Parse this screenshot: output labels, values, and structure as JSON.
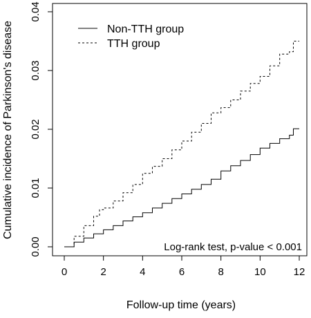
{
  "chart_data": {
    "type": "line",
    "title": "",
    "xlabel": "Follow-up time (years)",
    "ylabel": "Cumulative incidence of Parkinson's disease",
    "xlim": [
      0,
      12
    ],
    "ylim": [
      0,
      0.04
    ],
    "xticks": [
      0,
      2,
      4,
      6,
      8,
      10,
      12
    ],
    "xtick_labels": [
      "0",
      "2",
      "4",
      "6",
      "8",
      "10",
      "12"
    ],
    "yticks": [
      0,
      0.01,
      0.02,
      0.03,
      0.04
    ],
    "ytick_labels": [
      "0.00",
      "0.01",
      "0.02",
      "0.03",
      "0.04"
    ],
    "grid": false,
    "legend_position": "top-left",
    "annotation": "Log-rank test, p-value < 0.001",
    "series": [
      {
        "name": "Non-TTH group",
        "line_style": "solid",
        "x": [
          0,
          0.5,
          1,
          1.5,
          2,
          2.5,
          3,
          3.5,
          4,
          4.5,
          5,
          5.5,
          6,
          6.5,
          7,
          7.5,
          8,
          8.5,
          9,
          9.5,
          10,
          10.5,
          11,
          11.5,
          11.7,
          12
        ],
        "y": [
          0,
          0.0008,
          0.0015,
          0.0022,
          0.0029,
          0.0036,
          0.0044,
          0.0051,
          0.0058,
          0.0066,
          0.0074,
          0.0082,
          0.009,
          0.0098,
          0.0106,
          0.0115,
          0.0129,
          0.0138,
          0.0147,
          0.0157,
          0.0168,
          0.0176,
          0.0184,
          0.019,
          0.0201,
          0.0201
        ]
      },
      {
        "name": "TTH group",
        "line_style": "dashed",
        "x": [
          0,
          0.5,
          1,
          1.5,
          1.8,
          2,
          2.5,
          3,
          3.5,
          4,
          4.5,
          5,
          5.5,
          6,
          6.5,
          7,
          7.5,
          8,
          8.5,
          9,
          9.5,
          10,
          10.5,
          11,
          11.5,
          11.7,
          12
        ],
        "y": [
          0,
          0.0018,
          0.0036,
          0.0052,
          0.0063,
          0.0066,
          0.0078,
          0.0092,
          0.0106,
          0.0125,
          0.0137,
          0.015,
          0.0165,
          0.018,
          0.0195,
          0.021,
          0.0228,
          0.0237,
          0.025,
          0.0265,
          0.0278,
          0.029,
          0.0308,
          0.0328,
          0.0332,
          0.035,
          0.035
        ]
      }
    ]
  }
}
